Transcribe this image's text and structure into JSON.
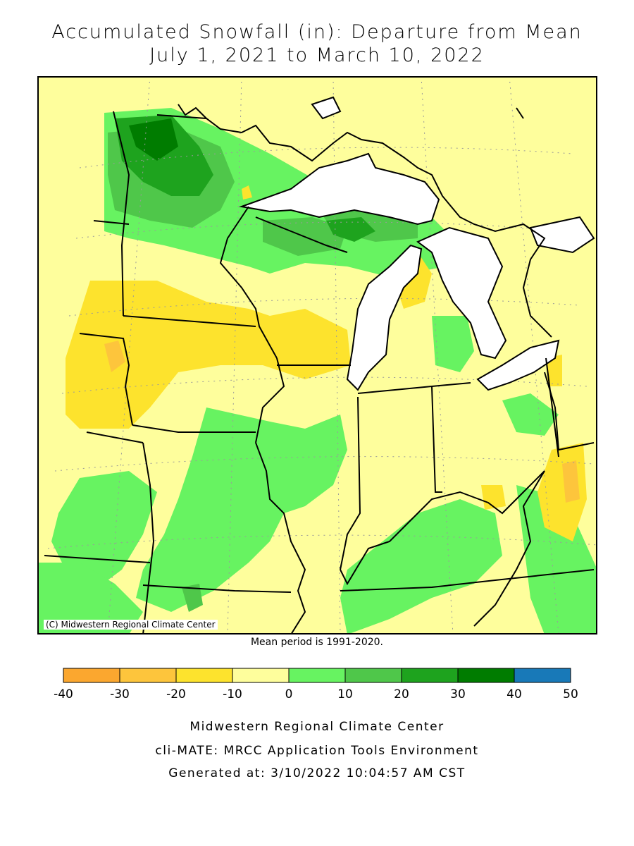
{
  "title": {
    "line1": "Accumulated Snowfall (in): Departure from Mean",
    "line2": "July 1, 2021 to March 10, 2022"
  },
  "map": {
    "credit": "(C) Midwestern Regional Climate Center",
    "mean_period": "Mean period is 1991-2020.",
    "colors": {
      "lake": "#ffffff",
      "boundary": "#000000",
      "graticule": "#9a9a9a"
    }
  },
  "legend": {
    "ticks": [
      "-40",
      "-30",
      "-20",
      "-10",
      "0",
      "10",
      "20",
      "30",
      "40",
      "50"
    ],
    "bins": [
      {
        "min": -40,
        "max": -30,
        "color": "#fba72f"
      },
      {
        "min": -30,
        "max": -20,
        "color": "#fdc53c"
      },
      {
        "min": -20,
        "max": -10,
        "color": "#fde32d"
      },
      {
        "min": -10,
        "max": 0,
        "color": "#fefe9c"
      },
      {
        "min": 0,
        "max": 10,
        "color": "#67f361"
      },
      {
        "min": 10,
        "max": 20,
        "color": "#4fc74a"
      },
      {
        "min": 20,
        "max": 30,
        "color": "#1ea31e"
      },
      {
        "min": 30,
        "max": 40,
        "color": "#007c00"
      },
      {
        "min": 40,
        "max": 50,
        "color": "#1879b8"
      }
    ]
  },
  "footer": {
    "line1": "Midwestern Regional Climate Center",
    "line2": "cli-MATE: MRCC Application Tools Environment",
    "line3": "Generated at: 3/10/2022 10:04:57 AM CST"
  }
}
